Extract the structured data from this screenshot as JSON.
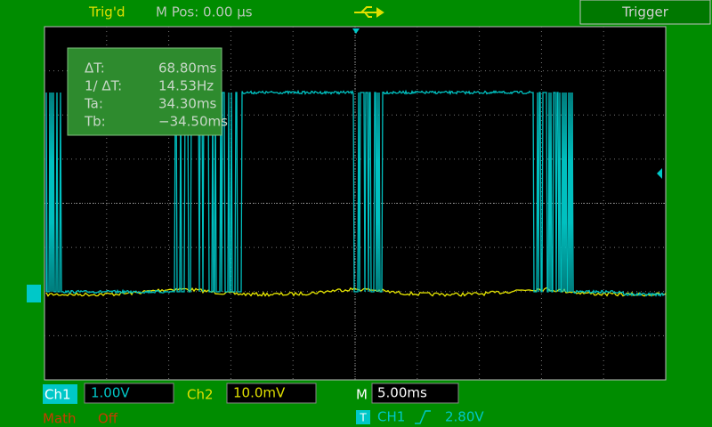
{
  "status": {
    "trigger_state": "Trig'd",
    "m_pos": "M Pos: 0.00 µs",
    "trigger_button": "Trigger"
  },
  "measurements": [
    {
      "label": "ΔT:",
      "value": "68.80ms"
    },
    {
      "label": "1/ ΔT:",
      "value": "14.53Hz"
    },
    {
      "label": "Ta:",
      "value": "34.30ms"
    },
    {
      "label": "Tb:",
      "value": "−34.50ms"
    }
  ],
  "channels": {
    "ch1": {
      "label": "Ch1",
      "scale": "1.00V"
    },
    "ch2": {
      "label": "Ch2",
      "scale": "10.0mV"
    },
    "math": {
      "label": "Math",
      "state": "Off"
    }
  },
  "timebase": {
    "label": "M",
    "scale": "5.00ms"
  },
  "trigger": {
    "icon": "T",
    "source": "CH1",
    "level": "2.80V"
  }
}
